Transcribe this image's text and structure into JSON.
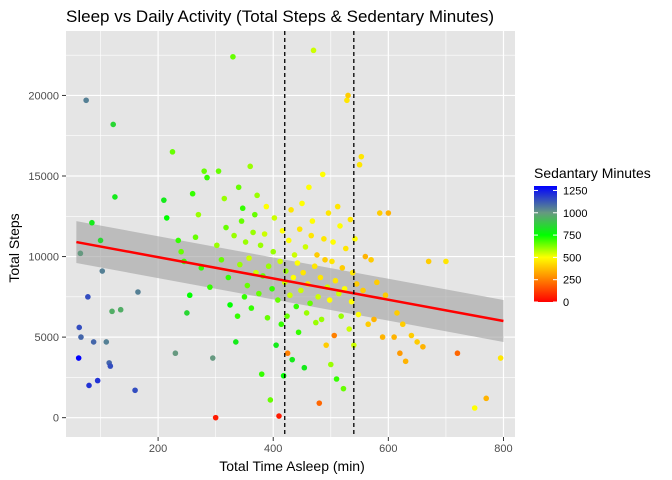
{
  "chart_data": {
    "type": "scatter",
    "title": "Sleep vs Daily Activity (Total Steps & Sedentary Minutes)",
    "xlabel": "Total Time Asleep (min)",
    "ylabel": "Total Steps",
    "xlim": [
      40,
      820
    ],
    "ylim": [
      -1200,
      24000
    ],
    "x_ticks": [
      200,
      400,
      600,
      800
    ],
    "y_ticks": [
      0,
      5000,
      10000,
      15000,
      20000
    ],
    "grid": true,
    "colors": {
      "panel_background": "#e5e5e5",
      "grid": "#ffffff",
      "trend_line": "#ff0000",
      "confidence_band": "#a6a6a6",
      "reference_line": "#000000"
    },
    "color_scale": {
      "title": "Sedantary Minutes",
      "min": 0,
      "max": 1300,
      "breaks": [
        0,
        250,
        500,
        750,
        1000,
        1250
      ],
      "stops": [
        {
          "value": 0,
          "color": "#ff0000"
        },
        {
          "value": 500,
          "color": "#ffff00"
        },
        {
          "value": 750,
          "color": "#00ff00"
        },
        {
          "value": 1000,
          "color": "#669980"
        },
        {
          "value": 1300,
          "color": "#0000ff"
        }
      ],
      "legend_position": "right"
    },
    "reference_lines_x": [
      420,
      540
    ],
    "trend": {
      "x": [
        58,
        800
      ],
      "y": [
        10900,
        6000
      ],
      "band_upper": [
        12200,
        7300
      ],
      "band_lower": [
        9600,
        4700
      ]
    },
    "points": [
      [
        62,
        3700,
        1300
      ],
      [
        63,
        5600,
        1150
      ],
      [
        66,
        5000,
        1100
      ],
      [
        65,
        10200,
        1000
      ],
      [
        75,
        19700,
        1050
      ],
      [
        78,
        7500,
        1150
      ],
      [
        80,
        2000,
        1200
      ],
      [
        85,
        12100,
        800
      ],
      [
        88,
        4700,
        1100
      ],
      [
        95,
        2300,
        1200
      ],
      [
        100,
        11000,
        850
      ],
      [
        103,
        9100,
        1050
      ],
      [
        110,
        4700,
        1050
      ],
      [
        115,
        3400,
        1100
      ],
      [
        117,
        3200,
        1150
      ],
      [
        120,
        6600,
        950
      ],
      [
        122,
        18200,
        850
      ],
      [
        125,
        13700,
        800
      ],
      [
        135,
        6700,
        950
      ],
      [
        160,
        1700,
        1150
      ],
      [
        165,
        7800,
        1050
      ],
      [
        210,
        13500,
        800
      ],
      [
        215,
        12400,
        750
      ],
      [
        225,
        16500,
        650
      ],
      [
        230,
        4000,
        1000
      ],
      [
        235,
        11000,
        700
      ],
      [
        240,
        10300,
        650
      ],
      [
        245,
        9700,
        700
      ],
      [
        250,
        6500,
        850
      ],
      [
        255,
        7600,
        750
      ],
      [
        260,
        13900,
        700
      ],
      [
        265,
        11200,
        650
      ],
      [
        270,
        12600,
        600
      ],
      [
        275,
        9300,
        700
      ],
      [
        280,
        15300,
        650
      ],
      [
        285,
        14900,
        700
      ],
      [
        290,
        8100,
        700
      ],
      [
        295,
        3700,
        1000
      ],
      [
        300,
        0,
        50
      ],
      [
        302,
        10700,
        600
      ],
      [
        305,
        15300,
        650
      ],
      [
        310,
        9800,
        650
      ],
      [
        315,
        13600,
        600
      ],
      [
        318,
        11800,
        650
      ],
      [
        322,
        8700,
        700
      ],
      [
        325,
        7000,
        750
      ],
      [
        330,
        22400,
        650
      ],
      [
        332,
        11300,
        600
      ],
      [
        335,
        4700,
        800
      ],
      [
        338,
        6300,
        700
      ],
      [
        340,
        14300,
        650
      ],
      [
        342,
        9500,
        600
      ],
      [
        345,
        12200,
        650
      ],
      [
        347,
        13000,
        700
      ],
      [
        350,
        7500,
        700
      ],
      [
        352,
        10900,
        600
      ],
      [
        355,
        8200,
        650
      ],
      [
        358,
        9900,
        550
      ],
      [
        360,
        15600,
        600
      ],
      [
        362,
        6800,
        700
      ],
      [
        365,
        11500,
        600
      ],
      [
        368,
        12600,
        650
      ],
      [
        370,
        9000,
        550
      ],
      [
        372,
        13800,
        600
      ],
      [
        375,
        7700,
        650
      ],
      [
        378,
        10700,
        600
      ],
      [
        380,
        2700,
        700
      ],
      [
        382,
        8800,
        650
      ],
      [
        385,
        11400,
        550
      ],
      [
        388,
        13100,
        500
      ],
      [
        390,
        6200,
        650
      ],
      [
        392,
        9400,
        600
      ],
      [
        395,
        1100,
        650
      ],
      [
        398,
        8000,
        700
      ],
      [
        400,
        10300,
        600
      ],
      [
        402,
        12400,
        550
      ],
      [
        405,
        4500,
        800
      ],
      [
        408,
        7300,
        650
      ],
      [
        410,
        100,
        50
      ],
      [
        412,
        9700,
        550
      ],
      [
        414,
        5800,
        700
      ],
      [
        416,
        11600,
        500
      ],
      [
        418,
        2600,
        750
      ],
      [
        420,
        8400,
        550
      ],
      [
        422,
        9100,
        600
      ],
      [
        424,
        6300,
        650
      ],
      [
        425,
        4000,
        250
      ],
      [
        427,
        11000,
        500
      ],
      [
        429,
        7600,
        550
      ],
      [
        431,
        12900,
        450
      ],
      [
        433,
        3600,
        800
      ],
      [
        435,
        8700,
        500
      ],
      [
        437,
        10100,
        550
      ],
      [
        440,
        6900,
        700
      ],
      [
        442,
        9600,
        500
      ],
      [
        444,
        5300,
        700
      ],
      [
        446,
        11700,
        450
      ],
      [
        448,
        7900,
        550
      ],
      [
        450,
        13300,
        500
      ],
      [
        452,
        9000,
        450
      ],
      [
        454,
        3100,
        800
      ],
      [
        456,
        10600,
        550
      ],
      [
        458,
        6500,
        600
      ],
      [
        460,
        8300,
        450
      ],
      [
        462,
        14300,
        500
      ],
      [
        464,
        7100,
        650
      ],
      [
        466,
        11300,
        450
      ],
      [
        468,
        12200,
        500
      ],
      [
        470,
        22800,
        550
      ],
      [
        472,
        9400,
        450
      ],
      [
        474,
        5900,
        600
      ],
      [
        476,
        10100,
        400
      ],
      [
        478,
        7500,
        550
      ],
      [
        480,
        900,
        200
      ],
      [
        482,
        8700,
        450
      ],
      [
        484,
        6100,
        600
      ],
      [
        486,
        15100,
        500
      ],
      [
        488,
        11100,
        450
      ],
      [
        490,
        9800,
        400
      ],
      [
        492,
        4500,
        400
      ],
      [
        494,
        8100,
        550
      ],
      [
        496,
        12700,
        450
      ],
      [
        498,
        7300,
        500
      ],
      [
        500,
        3300,
        600
      ],
      [
        502,
        9700,
        450
      ],
      [
        504,
        10900,
        500
      ],
      [
        506,
        5100,
        250
      ],
      [
        508,
        8500,
        450
      ],
      [
        510,
        2400,
        700
      ],
      [
        512,
        13100,
        450
      ],
      [
        514,
        7700,
        550
      ],
      [
        516,
        11900,
        500
      ],
      [
        518,
        6300,
        600
      ],
      [
        520,
        9300,
        400
      ],
      [
        522,
        1800,
        650
      ],
      [
        524,
        8000,
        500
      ],
      [
        526,
        10500,
        450
      ],
      [
        528,
        19700,
        450
      ],
      [
        530,
        20000,
        400
      ],
      [
        532,
        5500,
        550
      ],
      [
        534,
        12300,
        450
      ],
      [
        536,
        7200,
        500
      ],
      [
        538,
        9000,
        450
      ],
      [
        540,
        4500,
        550
      ],
      [
        542,
        11100,
        500
      ],
      [
        545,
        8300,
        400
      ],
      [
        548,
        6400,
        500
      ],
      [
        550,
        15700,
        450
      ],
      [
        553,
        16200,
        450
      ],
      [
        556,
        7900,
        400
      ],
      [
        560,
        10000,
        350
      ],
      [
        565,
        5800,
        400
      ],
      [
        570,
        9800,
        400
      ],
      [
        575,
        6100,
        350
      ],
      [
        580,
        8400,
        400
      ],
      [
        585,
        12700,
        400
      ],
      [
        590,
        5000,
        350
      ],
      [
        595,
        7600,
        400
      ],
      [
        600,
        12700,
        350
      ],
      [
        610,
        5000,
        350
      ],
      [
        615,
        6500,
        400
      ],
      [
        620,
        4000,
        300
      ],
      [
        625,
        5800,
        400
      ],
      [
        630,
        3500,
        350
      ],
      [
        640,
        5100,
        400
      ],
      [
        650,
        4700,
        400
      ],
      [
        660,
        4400,
        350
      ],
      [
        670,
        9700,
        400
      ],
      [
        700,
        9700,
        450
      ],
      [
        720,
        4000,
        200
      ],
      [
        750,
        600,
        500
      ],
      [
        770,
        1200,
        350
      ],
      [
        795,
        3700,
        450
      ]
    ]
  }
}
